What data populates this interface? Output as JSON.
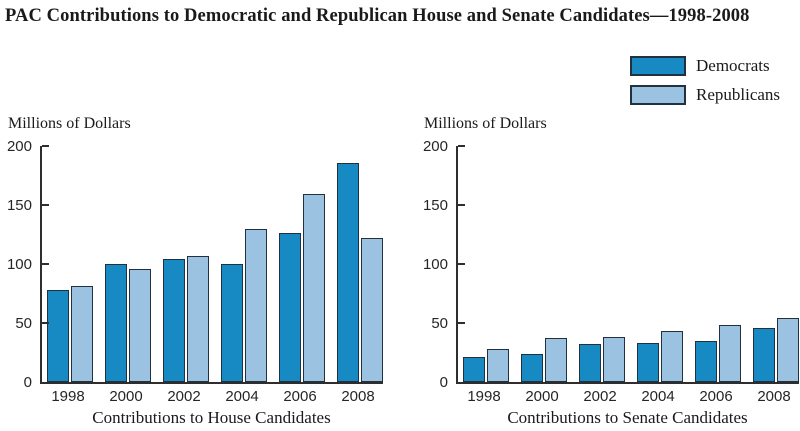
{
  "title": "PAC Contributions to Democratic and Republican House and Senate Candidates—1998-2008",
  "legend": {
    "position": "top-right",
    "items": [
      {
        "label": "Democrats",
        "color": "#1789C3"
      },
      {
        "label": "Republicans",
        "color": "#9CC2E2"
      }
    ]
  },
  "colors": {
    "democrats": "#1789C3",
    "republicans": "#9CC2E2",
    "bar_border": "#22313F",
    "axis": "#2E2E2E",
    "text": "#1A1A1A"
  },
  "chart_data": [
    {
      "type": "bar",
      "unit_label": "Millions of Dollars",
      "xlabel": "Contributions to House Candidates",
      "categories": [
        "1998",
        "2000",
        "2002",
        "2004",
        "2006",
        "2008"
      ],
      "series": [
        {
          "name": "Democrats",
          "values": [
            78,
            100,
            104,
            100,
            126,
            186
          ]
        },
        {
          "name": "Republicans",
          "values": [
            81,
            96,
            107,
            130,
            159,
            122
          ]
        }
      ],
      "ylim": [
        0,
        200
      ],
      "yticks": [
        0,
        50,
        100,
        150,
        200
      ],
      "grid": false,
      "legend_position": "shared top-right"
    },
    {
      "type": "bar",
      "unit_label": "Millions of Dollars",
      "xlabel": "Contributions to Senate Candidates",
      "categories": [
        "1998",
        "2000",
        "2002",
        "2004",
        "2006",
        "2008"
      ],
      "series": [
        {
          "name": "Democrats",
          "values": [
            21,
            24,
            32,
            33,
            35,
            46
          ]
        },
        {
          "name": "Republicans",
          "values": [
            28,
            37,
            38,
            43,
            48,
            54
          ]
        }
      ],
      "ylim": [
        0,
        200
      ],
      "yticks": [
        0,
        50,
        100,
        150,
        200
      ],
      "grid": false,
      "legend_position": "shared top-right"
    }
  ]
}
